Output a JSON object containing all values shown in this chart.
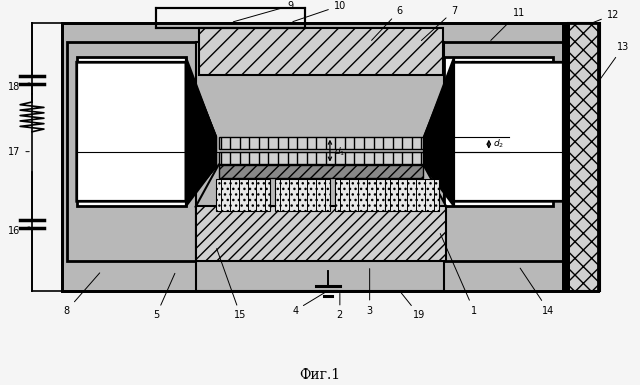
{
  "title": "Фиг.1",
  "bg": "#f5f5f5",
  "white": "#ffffff",
  "gray": "#b8b8b8",
  "dgray": "#888888",
  "black": "#000000",
  "lgray": "#d0d0d0",
  "xlgray": "#e8e8e8"
}
